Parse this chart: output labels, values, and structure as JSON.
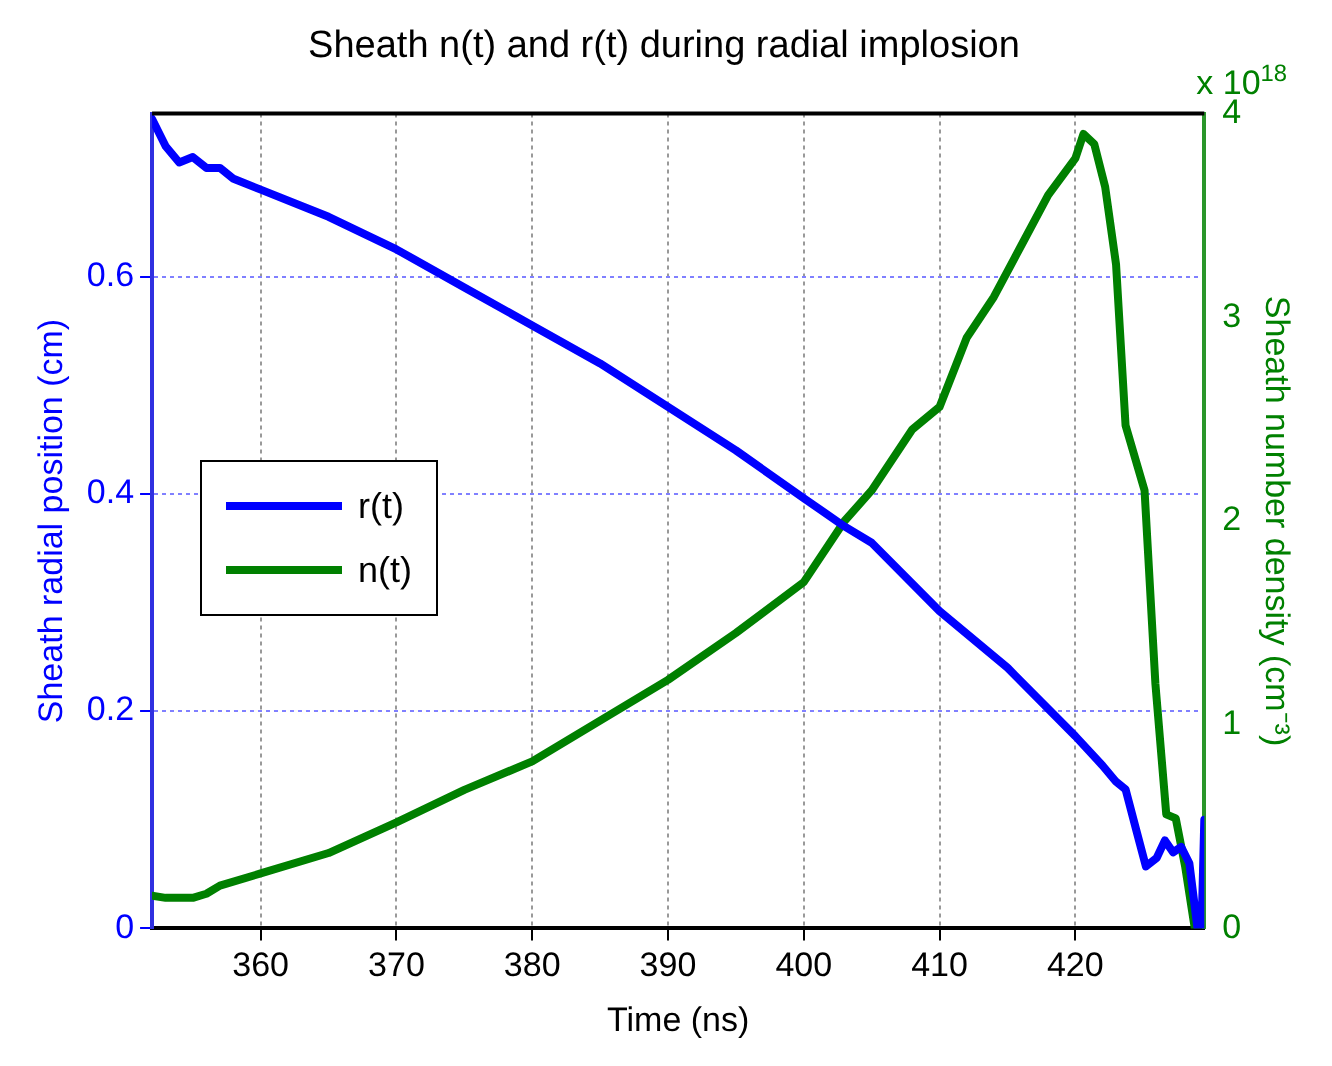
{
  "chart_data": {
    "type": "line",
    "title": "Sheath n(t) and r(t) during radial implosion",
    "xlabel": "Time (ns)",
    "ylabel": "Sheath radial position (cm)",
    "y2label": "Sheath number density (cm⁻³)",
    "annotations": [
      "x 10$^{18}$"
    ],
    "xlim": [
      352,
      429.5
    ],
    "xticks": [
      360,
      370,
      380,
      390,
      400,
      410,
      420
    ],
    "ylim": [
      0,
      0.75
    ],
    "yticks": [
      0,
      0.2,
      0.4,
      0.6
    ],
    "y2lim": [
      0,
      4
    ],
    "y2ticks": [
      0,
      1,
      2,
      3,
      4
    ],
    "grid": true,
    "legend": "left",
    "marker": "none",
    "line_style": "solid",
    "series": [
      {
        "name": "r(t)",
        "color": "#0000ff",
        "x": [
          352,
          353,
          354,
          355,
          356,
          357,
          358,
          360,
          365,
          370,
          375,
          380,
          385,
          390,
          395,
          400,
          403,
          405,
          410,
          415,
          420,
          422,
          423,
          423.7,
          424.5,
          425.2,
          426,
          426.6,
          427.2,
          427.8,
          428.4,
          429,
          429.3,
          429.5
        ],
        "values": [
          0.745,
          0.72,
          0.705,
          0.71,
          0.7,
          0.7,
          0.69,
          0.68,
          0.655,
          0.625,
          0.59,
          0.555,
          0.52,
          0.48,
          0.44,
          0.396,
          0.37,
          0.355,
          0.292,
          0.24,
          0.177,
          0.15,
          0.135,
          0.128,
          0.09,
          0.057,
          0.065,
          0.081,
          0.07,
          0.075,
          0.06,
          0.0,
          0.0,
          0.1
        ]
      },
      {
        "name": "n(t)",
        "color": "#008000",
        "axis": "y2",
        "x": [
          352,
          353,
          355,
          356,
          357,
          360,
          365,
          370,
          375,
          380,
          385,
          390,
          395,
          400,
          403,
          405,
          408,
          410,
          412,
          414,
          416,
          418,
          420,
          420.6,
          421.4,
          422.2,
          423,
          423.7,
          425.1,
          425.9,
          426.7,
          427.4,
          428.1,
          428.8,
          429.5
        ],
        "values": [
          0.16,
          0.15,
          0.15,
          0.17,
          0.21,
          0.27,
          0.37,
          0.52,
          0.68,
          0.82,
          1.02,
          1.22,
          1.45,
          1.7,
          2.0,
          2.15,
          2.45,
          2.56,
          2.9,
          3.1,
          3.35,
          3.6,
          3.78,
          3.9,
          3.85,
          3.64,
          3.26,
          2.47,
          2.15,
          1.2,
          0.56,
          0.54,
          0.3,
          0.0,
          0.0
        ]
      }
    ]
  }
}
